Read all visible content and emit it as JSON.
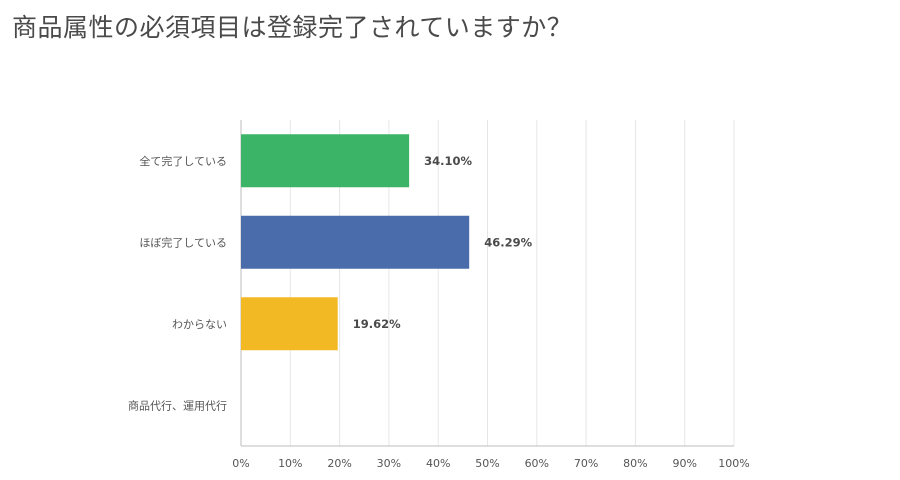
{
  "title": "商品属性の必須項目は登録完了されていますか？",
  "chart_data": {
    "type": "bar",
    "orientation": "horizontal",
    "title": "商品属性の必須項目は登録完了されていますか？",
    "categories": [
      "全て完了している",
      "ほぼ完了している",
      "わからない",
      "商品代行、運用代行"
    ],
    "values": [
      34.1,
      46.29,
      19.62,
      0
    ],
    "value_labels": [
      "34.10%",
      "46.29%",
      "19.62%",
      ""
    ],
    "colors": [
      "#3bb467",
      "#4a6cab",
      "#f3b925",
      "#cccccc"
    ],
    "xlim": [
      0,
      100
    ],
    "xticks": [
      "0%",
      "10%",
      "20%",
      "30%",
      "40%",
      "50%",
      "60%",
      "70%",
      "80%",
      "90%",
      "100%"
    ],
    "grid": true,
    "legend": "none"
  }
}
